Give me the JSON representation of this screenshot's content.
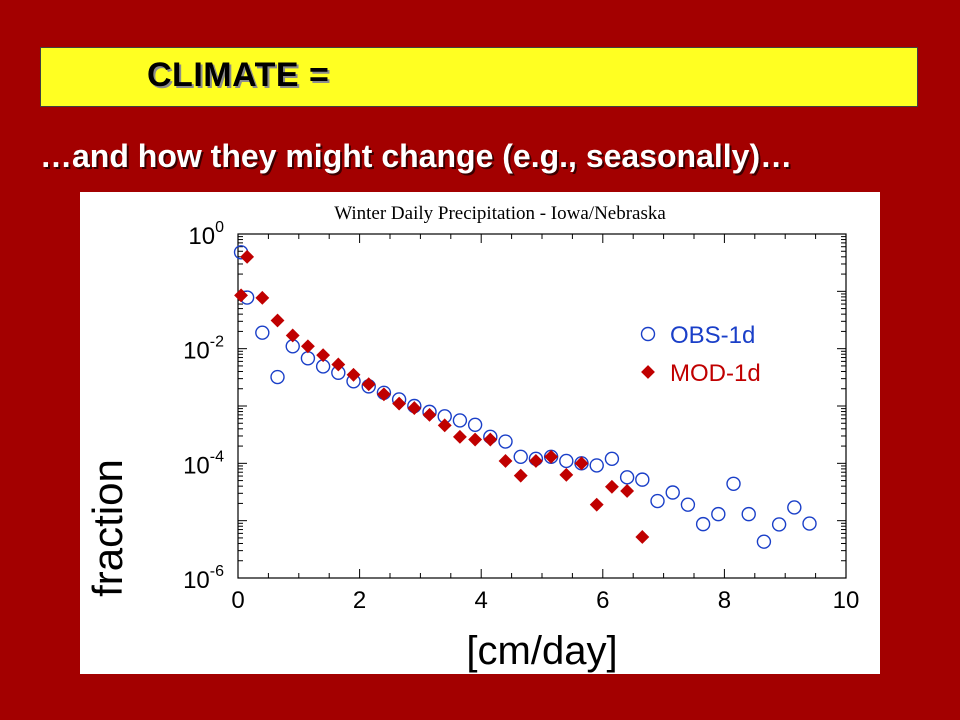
{
  "slide": {
    "banner_title": "CLIMATE =",
    "subtitle": "…and how they might change (e.g., seasonally)…"
  },
  "colors": {
    "background": "#a30000",
    "banner": "#ffff22",
    "obs": "#1a3fc8",
    "mod": "#c00000"
  },
  "chart_data": {
    "type": "scatter",
    "title": "Winter Daily Precipitation - Iowa/Nebraska",
    "xlabel": "[cm/day]",
    "ylabel": "fraction",
    "xlim": [
      0,
      10
    ],
    "ylim": [
      1e-06,
      1
    ],
    "yscale": "log",
    "x_ticks": [
      "0",
      "2",
      "4",
      "6",
      "8",
      "10"
    ],
    "y_ticks": [
      {
        "base": "10",
        "exp": "0",
        "value": 1
      },
      {
        "base": "10",
        "exp": "-2",
        "value": 0.01
      },
      {
        "base": "10",
        "exp": "-4",
        "value": 0.0001
      },
      {
        "base": "10",
        "exp": "-6",
        "value": 1e-06
      }
    ],
    "legend_position": "right",
    "series": [
      {
        "name": "OBS-1d",
        "marker": "circle",
        "color": "#1a3fc8",
        "points": [
          [
            0.05,
            0.48
          ],
          [
            0.15,
            0.078
          ],
          [
            0.4,
            0.019
          ],
          [
            0.65,
            0.0032
          ],
          [
            0.9,
            0.011
          ],
          [
            1.15,
            0.0068
          ],
          [
            1.4,
            0.0049
          ],
          [
            1.65,
            0.0038
          ],
          [
            1.9,
            0.0027
          ],
          [
            2.15,
            0.0022
          ],
          [
            2.4,
            0.0017
          ],
          [
            2.65,
            0.0013
          ],
          [
            2.9,
            0.001
          ],
          [
            3.15,
            0.00079
          ],
          [
            3.4,
            0.00066
          ],
          [
            3.65,
            0.00056
          ],
          [
            3.9,
            0.00047
          ],
          [
            4.15,
            0.00029
          ],
          [
            4.4,
            0.00024
          ],
          [
            4.65,
            0.00013
          ],
          [
            4.9,
            0.00012
          ],
          [
            5.15,
            0.00013
          ],
          [
            5.4,
            0.00011
          ],
          [
            5.65,
            0.0001
          ],
          [
            5.9,
            9.2e-05
          ],
          [
            6.15,
            0.00012
          ],
          [
            6.4,
            5.7e-05
          ],
          [
            6.65,
            5.2e-05
          ],
          [
            6.9,
            2.2e-05
          ],
          [
            7.15,
            3.1e-05
          ],
          [
            7.4,
            1.9e-05
          ],
          [
            7.65,
            8.7e-06
          ],
          [
            7.9,
            1.3e-05
          ],
          [
            8.15,
            4.4e-05
          ],
          [
            8.4,
            1.3e-05
          ],
          [
            8.65,
            4.3e-06
          ],
          [
            8.9,
            8.6e-06
          ],
          [
            9.15,
            1.7e-05
          ],
          [
            9.4,
            8.9e-06
          ]
        ]
      },
      {
        "name": "MOD-1d",
        "marker": "diamond",
        "color": "#c00000",
        "points": [
          [
            0.05,
            0.085
          ],
          [
            0.15,
            0.4
          ],
          [
            0.4,
            0.077
          ],
          [
            0.65,
            0.031
          ],
          [
            0.9,
            0.017
          ],
          [
            1.15,
            0.011
          ],
          [
            1.4,
            0.0077
          ],
          [
            1.65,
            0.0053
          ],
          [
            1.9,
            0.0035
          ],
          [
            2.15,
            0.0024
          ],
          [
            2.4,
            0.0016
          ],
          [
            2.65,
            0.0011
          ],
          [
            2.9,
            0.00092
          ],
          [
            3.15,
            0.0007
          ],
          [
            3.4,
            0.00046
          ],
          [
            3.65,
            0.00029
          ],
          [
            3.9,
            0.00026
          ],
          [
            4.15,
            0.00026
          ],
          [
            4.4,
            0.00011
          ],
          [
            4.65,
            6.1e-05
          ],
          [
            4.9,
            0.00011
          ],
          [
            5.15,
            0.00013
          ],
          [
            5.4,
            6.3e-05
          ],
          [
            5.65,
            0.0001
          ],
          [
            5.9,
            1.9e-05
          ],
          [
            6.15,
            3.9e-05
          ],
          [
            6.4,
            3.3e-05
          ],
          [
            6.65,
            5.2e-06
          ]
        ]
      }
    ]
  }
}
